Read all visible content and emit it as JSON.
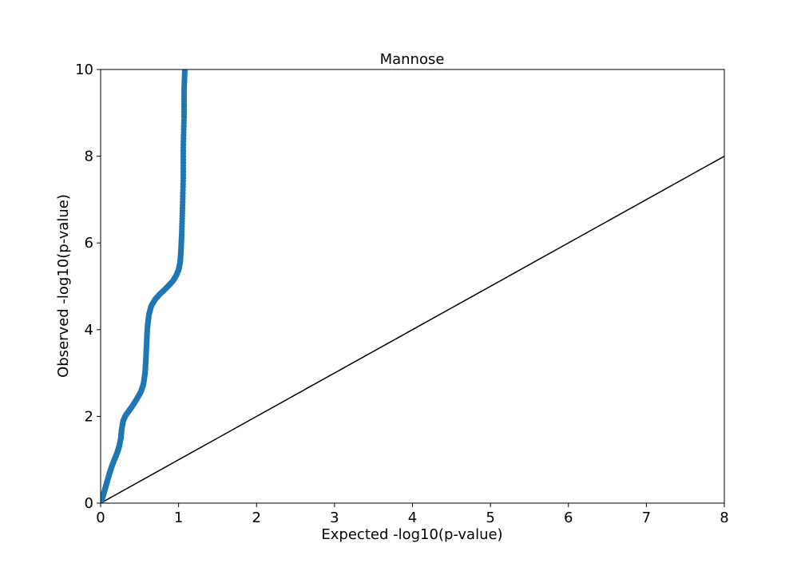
{
  "chart_data": {
    "type": "scatter",
    "title": "Mannose",
    "xlabel": "Expected -log10(p-value)",
    "ylabel": "Observed -log10(p-value)",
    "xlim": [
      0,
      8
    ],
    "ylim": [
      0,
      10
    ],
    "xticks": [
      0,
      1,
      2,
      3,
      4,
      5,
      6,
      7,
      8
    ],
    "yticks": [
      0,
      2,
      4,
      6,
      8,
      10
    ],
    "grid": false,
    "legend": "none",
    "series": [
      {
        "color": "#1f77b4",
        "points": [
          [
            0.0,
            0.0
          ],
          [
            0.02,
            0.1
          ],
          [
            0.04,
            0.22
          ],
          [
            0.06,
            0.35
          ],
          [
            0.08,
            0.47
          ],
          [
            0.1,
            0.6
          ],
          [
            0.12,
            0.72
          ],
          [
            0.14,
            0.83
          ],
          [
            0.16,
            0.93
          ],
          [
            0.18,
            1.02
          ],
          [
            0.2,
            1.1
          ],
          [
            0.22,
            1.2
          ],
          [
            0.24,
            1.32
          ],
          [
            0.26,
            1.5
          ],
          [
            0.27,
            1.7
          ],
          [
            0.29,
            1.9
          ],
          [
            0.32,
            2.02
          ],
          [
            0.36,
            2.12
          ],
          [
            0.4,
            2.22
          ],
          [
            0.44,
            2.33
          ],
          [
            0.48,
            2.45
          ],
          [
            0.52,
            2.58
          ],
          [
            0.55,
            2.75
          ],
          [
            0.57,
            3.0
          ],
          [
            0.58,
            3.3
          ],
          [
            0.59,
            3.7
          ],
          [
            0.6,
            4.05
          ],
          [
            0.62,
            4.35
          ],
          [
            0.65,
            4.55
          ],
          [
            0.7,
            4.7
          ],
          [
            0.76,
            4.82
          ],
          [
            0.82,
            4.92
          ],
          [
            0.88,
            5.03
          ],
          [
            0.93,
            5.13
          ],
          [
            0.97,
            5.25
          ],
          [
            1.0,
            5.38
          ],
          [
            1.02,
            5.55
          ],
          [
            1.03,
            5.8
          ],
          [
            1.04,
            6.2
          ],
          [
            1.05,
            6.8
          ],
          [
            1.06,
            7.5
          ],
          [
            1.06,
            8.2
          ],
          [
            1.07,
            8.9
          ],
          [
            1.07,
            9.5
          ],
          [
            1.08,
            10.0
          ]
        ]
      }
    ],
    "reference_line": {
      "color": "#000000",
      "from": [
        0,
        0
      ],
      "to": [
        8,
        8
      ]
    }
  }
}
